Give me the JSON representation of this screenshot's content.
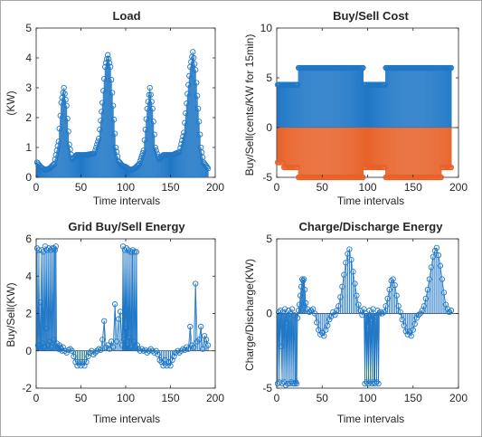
{
  "chart_data": [
    {
      "type": "stem",
      "title": "Load",
      "xlabel": "Time intervals",
      "ylabel": "(KW)",
      "xlim": [
        0,
        200
      ],
      "ylim": [
        0,
        5
      ],
      "xticks": [
        0,
        50,
        100,
        150,
        200
      ],
      "yticks": [
        0,
        1,
        2,
        3,
        4,
        5
      ],
      "color": "#1f77c6",
      "stems": "every interval",
      "profile": [
        [
          1,
          0.5
        ],
        [
          5,
          0.35
        ],
        [
          10,
          0.25
        ],
        [
          15,
          0.3
        ],
        [
          20,
          0.45
        ],
        [
          25,
          1.2
        ],
        [
          28,
          2.5
        ],
        [
          31,
          3.0
        ],
        [
          34,
          2.4
        ],
        [
          37,
          1.1
        ],
        [
          40,
          0.6
        ],
        [
          45,
          0.75
        ],
        [
          55,
          0.75
        ],
        [
          65,
          0.8
        ],
        [
          70,
          1.3
        ],
        [
          74,
          2.5
        ],
        [
          77,
          3.7
        ],
        [
          80,
          4.1
        ],
        [
          83,
          3.7
        ],
        [
          86,
          2.4
        ],
        [
          89,
          1.0
        ],
        [
          92,
          0.55
        ],
        [
          96,
          0.4
        ],
        [
          100,
          0.35
        ],
        [
          105,
          0.25
        ],
        [
          110,
          0.3
        ],
        [
          115,
          0.45
        ],
        [
          120,
          0.9
        ],
        [
          124,
          2.3
        ],
        [
          127,
          3.0
        ],
        [
          130,
          2.3
        ],
        [
          133,
          1.0
        ],
        [
          137,
          0.6
        ],
        [
          142,
          0.75
        ],
        [
          152,
          0.75
        ],
        [
          160,
          0.85
        ],
        [
          165,
          1.5
        ],
        [
          169,
          2.8
        ],
        [
          172,
          3.7
        ],
        [
          175,
          4.2
        ],
        [
          178,
          3.6
        ],
        [
          181,
          2.3
        ],
        [
          184,
          1.0
        ],
        [
          187,
          0.5
        ],
        [
          192,
          0.3
        ]
      ]
    },
    {
      "type": "stem",
      "title": "Buy/Sell Cost",
      "xlabel": "Time intervals",
      "ylabel": "Buy/Sell(cents/KW for 15min)",
      "xlim": [
        0,
        200
      ],
      "ylim": [
        -5,
        10
      ],
      "xticks": [
        0,
        50,
        100,
        150,
        200
      ],
      "yticks": [
        -5,
        0,
        5,
        10
      ],
      "series": [
        {
          "color": "#1f77c6",
          "steps": [
            [
              1,
              4.3
            ],
            [
              24,
              6.0
            ],
            [
              96,
              4.3
            ],
            [
              120,
              6.0
            ],
            [
              192,
              6.0
            ]
          ]
        },
        {
          "color": "#e8622a",
          "steps": [
            [
              1,
              -3.5
            ],
            [
              8,
              -4.0
            ],
            [
              24,
              -5.0
            ],
            [
              96,
              -4.0
            ],
            [
              100,
              -4.0
            ],
            [
              120,
              -5.0
            ],
            [
              182,
              -4.0
            ],
            [
              192,
              -4.0
            ]
          ]
        }
      ]
    },
    {
      "type": "stem",
      "title": "Grid Buy/Sell Energy",
      "xlabel": "Time intervals",
      "ylabel": "Buy/Sell(KW)",
      "xlim": [
        0,
        200
      ],
      "ylim": [
        -2,
        6
      ],
      "xticks": [
        0,
        50,
        100,
        150,
        200
      ],
      "yticks": [
        -2,
        0,
        2,
        4,
        6
      ],
      "color": "#1f77c6",
      "points": [
        [
          1,
          5.5
        ],
        [
          2,
          0.3
        ],
        [
          3,
          5.4
        ],
        [
          4,
          0.3
        ],
        [
          5,
          2.6
        ],
        [
          6,
          5.4
        ],
        [
          7,
          0.4
        ],
        [
          8,
          5.3
        ],
        [
          9,
          0.2
        ],
        [
          10,
          5.6
        ],
        [
          11,
          1.2
        ],
        [
          12,
          5.4
        ],
        [
          13,
          0.3
        ],
        [
          14,
          5.5
        ],
        [
          15,
          0.5
        ],
        [
          16,
          5.4
        ],
        [
          17,
          0.2
        ],
        [
          18,
          5.5
        ],
        [
          19,
          0.6
        ],
        [
          20,
          5.5
        ],
        [
          21,
          5.4
        ],
        [
          22,
          5.6
        ],
        [
          23,
          0.4
        ],
        [
          24,
          0.2
        ],
        [
          25,
          0.1
        ],
        [
          26,
          0.3
        ],
        [
          27,
          0.2
        ],
        [
          28,
          0.1
        ],
        [
          29,
          0.0
        ],
        [
          30,
          0.2
        ],
        [
          32,
          0.0
        ],
        [
          34,
          -0.1
        ],
        [
          36,
          0.05
        ],
        [
          38,
          0.1
        ],
        [
          40,
          0.0
        ],
        [
          42,
          -0.3
        ],
        [
          44,
          -0.6
        ],
        [
          46,
          -0.8
        ],
        [
          48,
          -0.6
        ],
        [
          50,
          -0.8
        ],
        [
          52,
          -0.6
        ],
        [
          54,
          -0.8
        ],
        [
          56,
          -0.6
        ],
        [
          58,
          -0.3
        ],
        [
          60,
          -0.1
        ],
        [
          62,
          0.0
        ],
        [
          64,
          -0.2
        ],
        [
          66,
          -0.1
        ],
        [
          68,
          0.0
        ],
        [
          70,
          0.1
        ],
        [
          72,
          0.05
        ],
        [
          74,
          0.6
        ],
        [
          76,
          1.6
        ],
        [
          78,
          0.2
        ],
        [
          80,
          0.3
        ],
        [
          82,
          0.1
        ],
        [
          84,
          0.5
        ],
        [
          86,
          0.2
        ],
        [
          88,
          2.5
        ],
        [
          90,
          0.5
        ],
        [
          92,
          1.7
        ],
        [
          94,
          2.1
        ],
        [
          96,
          0.3
        ],
        [
          97,
          5.6
        ],
        [
          98,
          0.6
        ],
        [
          99,
          5.4
        ],
        [
          100,
          1.2
        ],
        [
          101,
          5.5
        ],
        [
          102,
          0.3
        ],
        [
          103,
          5.4
        ],
        [
          104,
          0.7
        ],
        [
          105,
          5.3
        ],
        [
          106,
          0.2
        ],
        [
          107,
          5.3
        ],
        [
          108,
          5.4
        ],
        [
          109,
          0.5
        ],
        [
          110,
          5.3
        ],
        [
          111,
          0.2
        ],
        [
          112,
          5.3
        ],
        [
          113,
          0.3
        ],
        [
          114,
          0.1
        ],
        [
          116,
          0.0
        ],
        [
          118,
          0.1
        ],
        [
          120,
          0.0
        ],
        [
          122,
          0.05
        ],
        [
          124,
          -0.1
        ],
        [
          126,
          0.0
        ],
        [
          128,
          0.1
        ],
        [
          130,
          0.0
        ],
        [
          132,
          -0.1
        ],
        [
          134,
          0.0
        ],
        [
          136,
          -0.2
        ],
        [
          138,
          -0.5
        ],
        [
          140,
          -0.6
        ],
        [
          142,
          -0.8
        ],
        [
          144,
          -0.5
        ],
        [
          146,
          -0.8
        ],
        [
          148,
          -0.6
        ],
        [
          150,
          -0.8
        ],
        [
          152,
          -0.5
        ],
        [
          154,
          -0.3
        ],
        [
          156,
          -0.1
        ],
        [
          158,
          0.0
        ],
        [
          160,
          -0.1
        ],
        [
          162,
          0.0
        ],
        [
          164,
          0.1
        ],
        [
          166,
          0.05
        ],
        [
          168,
          0.2
        ],
        [
          170,
          0.1
        ],
        [
          172,
          1.3
        ],
        [
          174,
          0.3
        ],
        [
          176,
          0.2
        ],
        [
          178,
          3.6
        ],
        [
          180,
          0.5
        ],
        [
          182,
          0.6
        ],
        [
          184,
          1.3
        ],
        [
          186,
          0.1
        ],
        [
          188,
          0.8
        ],
        [
          190,
          0.6
        ],
        [
          192,
          0.3
        ]
      ]
    },
    {
      "type": "stem",
      "title": "Charge/Discharge Energy",
      "xlabel": "Time intervals",
      "ylabel": "Charge/Discharge(KW)",
      "xlim": [
        0,
        200
      ],
      "ylim": [
        -5,
        5
      ],
      "xticks": [
        0,
        50,
        100,
        150,
        200
      ],
      "yticks": [
        -5,
        0,
        5
      ],
      "color": "#1f77c6",
      "points": [
        [
          1,
          -4.7
        ],
        [
          2,
          0.1
        ],
        [
          3,
          -4.6
        ],
        [
          4,
          0.2
        ],
        [
          5,
          -2.2
        ],
        [
          6,
          -4.7
        ],
        [
          7,
          0.1
        ],
        [
          8,
          -4.6
        ],
        [
          9,
          0.3
        ],
        [
          10,
          -4.8
        ],
        [
          11,
          -0.6
        ],
        [
          12,
          -4.7
        ],
        [
          13,
          0.2
        ],
        [
          14,
          -4.7
        ],
        [
          15,
          0.0
        ],
        [
          16,
          -4.6
        ],
        [
          17,
          0.3
        ],
        [
          18,
          -4.7
        ],
        [
          19,
          -0.1
        ],
        [
          20,
          -4.7
        ],
        [
          21,
          -4.6
        ],
        [
          22,
          -4.7
        ],
        [
          23,
          -0.3
        ],
        [
          24,
          0.2
        ],
        [
          25,
          0.6
        ],
        [
          26,
          1.2
        ],
        [
          27,
          1.8
        ],
        [
          28,
          2.3
        ],
        [
          29,
          2.2
        ],
        [
          30,
          2.3
        ],
        [
          31,
          1.6
        ],
        [
          32,
          0.7
        ],
        [
          34,
          0.3
        ],
        [
          36,
          0.1
        ],
        [
          38,
          0.2
        ],
        [
          40,
          0.3
        ],
        [
          42,
          0.0
        ],
        [
          44,
          -0.6
        ],
        [
          46,
          -1.1
        ],
        [
          48,
          -1.4
        ],
        [
          50,
          -1.3
        ],
        [
          52,
          -1.5
        ],
        [
          54,
          -1.1
        ],
        [
          56,
          -0.8
        ],
        [
          58,
          -0.4
        ],
        [
          60,
          -0.2
        ],
        [
          62,
          0.1
        ],
        [
          64,
          -0.1
        ],
        [
          66,
          0.2
        ],
        [
          68,
          0.5
        ],
        [
          70,
          1.1
        ],
        [
          72,
          1.8
        ],
        [
          74,
          2.6
        ],
        [
          76,
          3.4
        ],
        [
          78,
          4.0
        ],
        [
          80,
          4.3
        ],
        [
          82,
          3.6
        ],
        [
          84,
          2.8
        ],
        [
          86,
          2.0
        ],
        [
          88,
          1.2
        ],
        [
          90,
          0.6
        ],
        [
          92,
          0.2
        ],
        [
          94,
          -0.1
        ],
        [
          96,
          0.3
        ],
        [
          97,
          -4.7
        ],
        [
          98,
          0.0
        ],
        [
          99,
          -4.6
        ],
        [
          100,
          -0.8
        ],
        [
          101,
          -4.7
        ],
        [
          102,
          0.2
        ],
        [
          103,
          -4.6
        ],
        [
          104,
          -0.4
        ],
        [
          105,
          -4.7
        ],
        [
          106,
          0.3
        ],
        [
          107,
          -4.6
        ],
        [
          108,
          -4.7
        ],
        [
          109,
          -0.2
        ],
        [
          110,
          -4.6
        ],
        [
          111,
          0.2
        ],
        [
          112,
          -4.7
        ],
        [
          113,
          0.0
        ],
        [
          114,
          0.1
        ],
        [
          116,
          0.0
        ],
        [
          118,
          0.1
        ],
        [
          120,
          0.5
        ],
        [
          122,
          1.0
        ],
        [
          124,
          1.6
        ],
        [
          126,
          2.2
        ],
        [
          128,
          2.3
        ],
        [
          130,
          1.9
        ],
        [
          132,
          1.2
        ],
        [
          134,
          0.5
        ],
        [
          136,
          0.1
        ],
        [
          138,
          -0.4
        ],
        [
          140,
          -0.8
        ],
        [
          142,
          -1.2
        ],
        [
          144,
          -1.4
        ],
        [
          146,
          -1.2
        ],
        [
          148,
          -1.5
        ],
        [
          150,
          -1.1
        ],
        [
          152,
          -0.7
        ],
        [
          154,
          -0.3
        ],
        [
          156,
          -0.1
        ],
        [
          158,
          0.0
        ],
        [
          160,
          0.2
        ],
        [
          162,
          0.5
        ],
        [
          164,
          1.0
        ],
        [
          166,
          1.6
        ],
        [
          168,
          2.3
        ],
        [
          170,
          3.1
        ],
        [
          172,
          3.8
        ],
        [
          174,
          4.2
        ],
        [
          176,
          4.4
        ],
        [
          178,
          3.9
        ],
        [
          180,
          3.2
        ],
        [
          182,
          2.3
        ],
        [
          184,
          1.4
        ],
        [
          186,
          0.6
        ],
        [
          188,
          0.3
        ],
        [
          190,
          0.1
        ],
        [
          192,
          0.2
        ]
      ]
    }
  ]
}
